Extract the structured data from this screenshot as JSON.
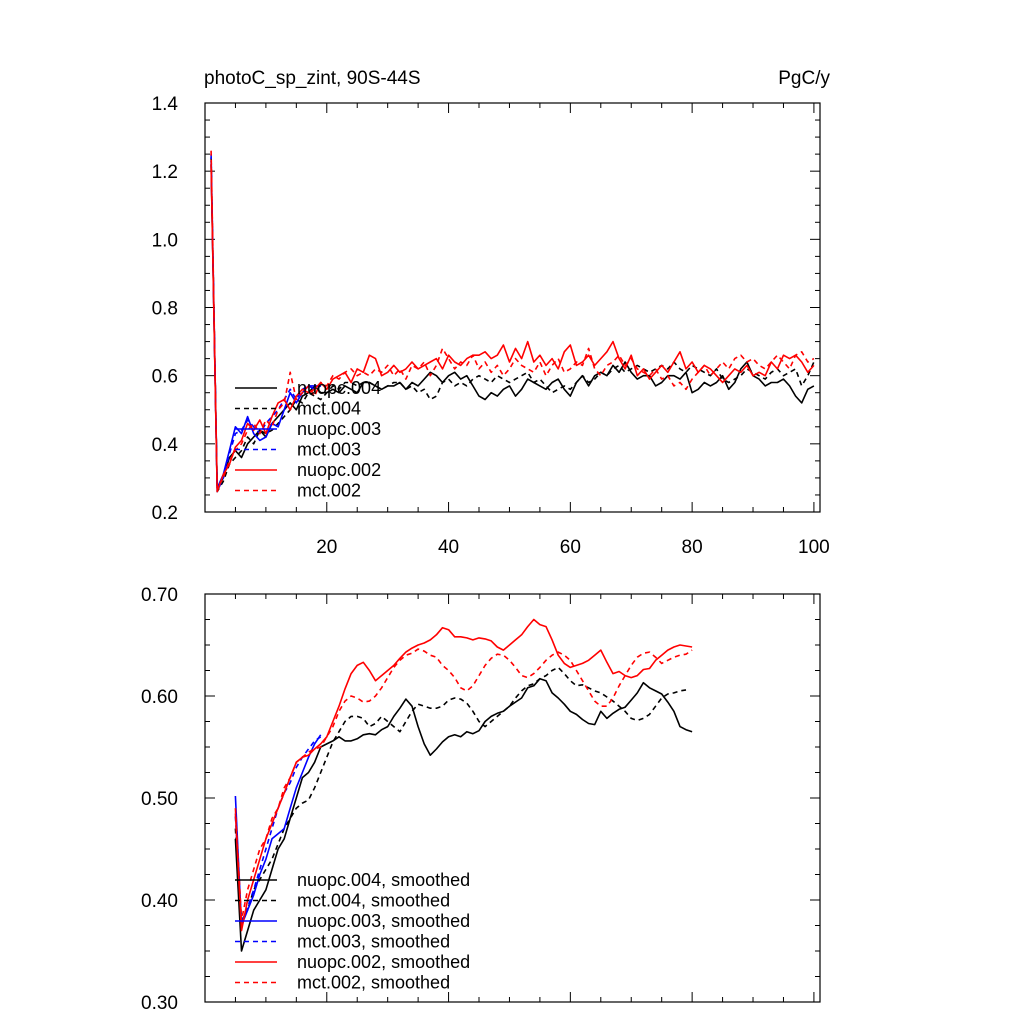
{
  "colors": {
    "black": "#000000",
    "blue": "#0000ff",
    "red": "#ff0000"
  },
  "chart_data": [
    {
      "type": "line",
      "title_left": "photoC_sp_zint, 90S-44S",
      "title_right": "PgC/y",
      "xlim": [
        0,
        101
      ],
      "ylim": [
        0.2,
        1.4
      ],
      "x_ticks": [
        20,
        40,
        60,
        80,
        100
      ],
      "x_tick_labels": [
        "20",
        "40",
        "60",
        "80",
        "100"
      ],
      "y_ticks": [
        0.2,
        0.4,
        0.6,
        0.8,
        1.0,
        1.2,
        1.4
      ],
      "y_tick_labels": [
        "0.2",
        "0.4",
        "0.6",
        "0.8",
        "1.0",
        "1.2",
        "1.4"
      ],
      "legend_position": "center-left",
      "series": [
        {
          "name": "nuopc.004",
          "color": "black",
          "dash": false,
          "x_start": 1,
          "values": [
            1.22,
            0.27,
            0.3,
            0.36,
            0.38,
            0.36,
            0.4,
            0.42,
            0.44,
            0.42,
            0.46,
            0.48,
            0.5,
            0.52,
            0.5,
            0.54,
            0.55,
            0.57,
            0.55,
            0.55,
            0.56,
            0.55,
            0.57,
            0.56,
            0.55,
            0.58,
            0.58,
            0.57,
            0.56,
            0.57,
            0.57,
            0.58,
            0.56,
            0.58,
            0.57,
            0.59,
            0.61,
            0.6,
            0.58,
            0.6,
            0.61,
            0.59,
            0.6,
            0.57,
            0.54,
            0.53,
            0.55,
            0.54,
            0.56,
            0.57,
            0.54,
            0.56,
            0.59,
            0.58,
            0.57,
            0.56,
            0.58,
            0.59,
            0.56,
            0.54,
            0.58,
            0.6,
            0.57,
            0.6,
            0.61,
            0.6,
            0.63,
            0.61,
            0.64,
            0.61,
            0.59,
            0.6,
            0.6,
            0.57,
            0.58,
            0.6,
            0.6,
            0.59,
            0.61,
            0.55,
            0.56,
            0.58,
            0.57,
            0.58,
            0.6,
            0.56,
            0.58,
            0.62,
            0.64,
            0.6,
            0.59,
            0.57,
            0.58,
            0.58,
            0.59,
            0.57,
            0.54,
            0.52,
            0.56,
            0.57
          ]
        },
        {
          "name": "mct.004",
          "color": "black",
          "dash": true,
          "x_start": 1,
          "values": [
            1.24,
            0.26,
            0.29,
            0.34,
            0.36,
            0.38,
            0.42,
            0.4,
            0.44,
            0.43,
            0.44,
            0.46,
            0.48,
            0.5,
            0.53,
            0.52,
            0.55,
            0.54,
            0.53,
            0.55,
            0.57,
            0.56,
            0.58,
            0.58,
            0.57,
            0.58,
            0.58,
            0.57,
            0.56,
            0.57,
            0.58,
            0.58,
            0.56,
            0.57,
            0.55,
            0.56,
            0.53,
            0.54,
            0.58,
            0.59,
            0.57,
            0.58,
            0.57,
            0.59,
            0.6,
            0.59,
            0.58,
            0.6,
            0.59,
            0.58,
            0.59,
            0.6,
            0.61,
            0.58,
            0.59,
            0.57,
            0.55,
            0.56,
            0.57,
            0.56,
            0.58,
            0.6,
            0.58,
            0.59,
            0.61,
            0.6,
            0.62,
            0.63,
            0.61,
            0.62,
            0.63,
            0.62,
            0.61,
            0.62,
            0.63,
            0.62,
            0.64,
            0.62,
            0.61,
            0.63,
            0.62,
            0.61,
            0.6,
            0.62,
            0.59,
            0.58,
            0.59,
            0.6,
            0.62,
            0.61,
            0.6,
            0.59,
            0.61,
            0.62,
            0.6,
            0.61,
            0.62,
            0.57,
            0.6,
            0.64
          ]
        },
        {
          "name": "nuopc.003",
          "color": "blue",
          "dash": false,
          "x_start": 1,
          "values": [
            1.23,
            0.27,
            0.31,
            0.38,
            0.45,
            0.43,
            0.48,
            0.43,
            0.41,
            0.42,
            0.46,
            0.45,
            0.5,
            0.55,
            0.52,
            0.55,
            0.57,
            0.57,
            0.57
          ]
        },
        {
          "name": "mct.003",
          "color": "blue",
          "dash": true,
          "x_start": 1,
          "values": [
            1.25,
            0.26,
            0.3,
            0.37,
            0.43,
            0.44,
            0.47,
            0.45,
            0.43,
            0.46,
            0.48,
            0.5,
            0.53,
            0.56,
            0.53,
            0.56,
            0.57,
            0.56,
            0.57
          ]
        },
        {
          "name": "nuopc.002",
          "color": "red",
          "dash": false,
          "x_start": 1,
          "values": [
            1.22,
            0.26,
            0.31,
            0.34,
            0.39,
            0.41,
            0.46,
            0.44,
            0.47,
            0.43,
            0.48,
            0.52,
            0.53,
            0.5,
            0.54,
            0.56,
            0.55,
            0.56,
            0.58,
            0.56,
            0.59,
            0.6,
            0.61,
            0.58,
            0.62,
            0.61,
            0.66,
            0.65,
            0.6,
            0.61,
            0.63,
            0.61,
            0.62,
            0.64,
            0.62,
            0.63,
            0.64,
            0.65,
            0.62,
            0.66,
            0.64,
            0.63,
            0.65,
            0.66,
            0.66,
            0.67,
            0.65,
            0.66,
            0.69,
            0.64,
            0.68,
            0.65,
            0.7,
            0.64,
            0.66,
            0.63,
            0.65,
            0.62,
            0.67,
            0.69,
            0.63,
            0.64,
            0.66,
            0.63,
            0.65,
            0.67,
            0.7,
            0.65,
            0.62,
            0.66,
            0.6,
            0.62,
            0.59,
            0.61,
            0.63,
            0.61,
            0.64,
            0.67,
            0.62,
            0.64,
            0.61,
            0.63,
            0.62,
            0.6,
            0.58,
            0.6,
            0.62,
            0.61,
            0.63,
            0.6,
            0.61,
            0.6,
            0.64,
            0.62,
            0.66,
            0.65,
            0.66,
            0.64,
            0.61,
            0.63
          ]
        },
        {
          "name": "mct.002",
          "color": "red",
          "dash": true,
          "x_start": 1,
          "values": [
            1.26,
            0.27,
            0.3,
            0.35,
            0.38,
            0.4,
            0.44,
            0.46,
            0.43,
            0.47,
            0.45,
            0.5,
            0.52,
            0.61,
            0.53,
            0.55,
            0.57,
            0.54,
            0.58,
            0.57,
            0.6,
            0.59,
            0.61,
            0.62,
            0.6,
            0.61,
            0.6,
            0.62,
            0.61,
            0.63,
            0.6,
            0.62,
            0.59,
            0.63,
            0.62,
            0.64,
            0.6,
            0.63,
            0.68,
            0.65,
            0.62,
            0.64,
            0.63,
            0.66,
            0.62,
            0.64,
            0.61,
            0.63,
            0.6,
            0.62,
            0.65,
            0.63,
            0.62,
            0.61,
            0.64,
            0.6,
            0.63,
            0.65,
            0.61,
            0.62,
            0.64,
            0.63,
            0.68,
            0.62,
            0.6,
            0.63,
            0.64,
            0.66,
            0.63,
            0.65,
            0.62,
            0.61,
            0.6,
            0.62,
            0.59,
            0.6,
            0.57,
            0.58,
            0.56,
            0.59,
            0.61,
            0.63,
            0.6,
            0.62,
            0.64,
            0.62,
            0.65,
            0.66,
            0.64,
            0.65,
            0.63,
            0.62,
            0.64,
            0.66,
            0.64,
            0.62,
            0.66,
            0.67,
            0.64,
            0.65
          ]
        }
      ],
      "legend": [
        {
          "label": "nuopc.004",
          "color": "black",
          "dash": false
        },
        {
          "label": "mct.004",
          "color": "black",
          "dash": true
        },
        {
          "label": "nuopc.003",
          "color": "blue",
          "dash": false
        },
        {
          "label": "mct.003",
          "color": "blue",
          "dash": true
        },
        {
          "label": "nuopc.002",
          "color": "red",
          "dash": false
        },
        {
          "label": "mct.002",
          "color": "red",
          "dash": true
        }
      ]
    },
    {
      "type": "line",
      "title_left": "",
      "title_right": "",
      "xlim": [
        0,
        101
      ],
      "ylim": [
        0.3,
        0.7
      ],
      "x_ticks": [
        20,
        40,
        60,
        80,
        100
      ],
      "x_tick_labels": [],
      "y_ticks": [
        0.3,
        0.4,
        0.5,
        0.6,
        0.7
      ],
      "y_tick_labels": [
        "0.30",
        "0.40",
        "0.50",
        "0.60",
        "0.70"
      ],
      "legend_position": "bottom-left",
      "series": [
        {
          "name": "nuopc.004, smoothed",
          "color": "black",
          "dash": false,
          "x_start": 5,
          "values": [
            0.46,
            0.35,
            0.37,
            0.39,
            0.4,
            0.41,
            0.43,
            0.45,
            0.46,
            0.48,
            0.5,
            0.52,
            0.525,
            0.535,
            0.55,
            0.553,
            0.556,
            0.56,
            0.556,
            0.556,
            0.558,
            0.562,
            0.563,
            0.562,
            0.567,
            0.57,
            0.58,
            0.588,
            0.597,
            0.59,
            0.57,
            0.553,
            0.542,
            0.548,
            0.555,
            0.56,
            0.562,
            0.56,
            0.565,
            0.563,
            0.566,
            0.575,
            0.58,
            0.583,
            0.585,
            0.59,
            0.594,
            0.598,
            0.608,
            0.61,
            0.617,
            0.615,
            0.603,
            0.598,
            0.592,
            0.585,
            0.582,
            0.577,
            0.573,
            0.572,
            0.585,
            0.578,
            0.583,
            0.587,
            0.589,
            0.596,
            0.603,
            0.613,
            0.608,
            0.605,
            0.602,
            0.594,
            0.585,
            0.57,
            0.567,
            0.565
          ]
        },
        {
          "name": "mct.004, smoothed",
          "color": "black",
          "dash": true,
          "x_start": 5,
          "values": [
            0.47,
            0.38,
            0.39,
            0.41,
            0.42,
            0.43,
            0.44,
            0.455,
            0.47,
            0.48,
            0.49,
            0.495,
            0.498,
            0.51,
            0.525,
            0.54,
            0.555,
            0.565,
            0.575,
            0.58,
            0.58,
            0.578,
            0.57,
            0.573,
            0.58,
            0.575,
            0.57,
            0.565,
            0.575,
            0.585,
            0.592,
            0.59,
            0.588,
            0.588,
            0.59,
            0.596,
            0.598,
            0.597,
            0.593,
            0.585,
            0.575,
            0.57,
            0.575,
            0.58,
            0.585,
            0.59,
            0.598,
            0.605,
            0.61,
            0.612,
            0.617,
            0.62,
            0.625,
            0.628,
            0.622,
            0.615,
            0.61,
            0.611,
            0.608,
            0.605,
            0.603,
            0.599,
            0.595,
            0.59,
            0.585,
            0.578,
            0.576,
            0.578,
            0.582,
            0.59,
            0.598,
            0.602,
            0.603,
            0.605,
            0.606
          ]
        },
        {
          "name": "nuopc.003, smoothed",
          "color": "blue",
          "dash": false,
          "x_start": 5,
          "values": [
            0.502,
            0.375,
            0.39,
            0.405,
            0.425,
            0.44,
            0.46,
            0.465,
            0.47,
            0.49,
            0.51,
            0.525,
            0.54,
            0.553,
            0.562
          ]
        },
        {
          "name": "mct.003, smoothed",
          "color": "blue",
          "dash": true,
          "x_start": 5,
          "values": [
            0.482,
            0.378,
            0.393,
            0.41,
            0.43,
            0.45,
            0.47,
            0.49,
            0.505,
            0.515,
            0.53,
            0.54,
            0.548,
            0.556,
            0.56
          ]
        },
        {
          "name": "nuopc.002, smoothed",
          "color": "red",
          "dash": false,
          "x_start": 5,
          "values": [
            0.485,
            0.37,
            0.4,
            0.42,
            0.44,
            0.46,
            0.475,
            0.49,
            0.505,
            0.52,
            0.535,
            0.54,
            0.542,
            0.548,
            0.553,
            0.56,
            0.575,
            0.59,
            0.607,
            0.622,
            0.63,
            0.633,
            0.625,
            0.615,
            0.62,
            0.625,
            0.63,
            0.637,
            0.643,
            0.647,
            0.65,
            0.652,
            0.655,
            0.66,
            0.667,
            0.665,
            0.658,
            0.658,
            0.657,
            0.655,
            0.657,
            0.656,
            0.654,
            0.648,
            0.645,
            0.65,
            0.655,
            0.66,
            0.668,
            0.675,
            0.67,
            0.668,
            0.655,
            0.64,
            0.632,
            0.628,
            0.63,
            0.632,
            0.635,
            0.64,
            0.645,
            0.633,
            0.622,
            0.624,
            0.62,
            0.618,
            0.62,
            0.626,
            0.627,
            0.635,
            0.64,
            0.645,
            0.648,
            0.65,
            0.649,
            0.648
          ]
        },
        {
          "name": "mct.002, smoothed",
          "color": "red",
          "dash": true,
          "x_start": 5,
          "values": [
            0.49,
            0.38,
            0.41,
            0.43,
            0.45,
            0.46,
            0.48,
            0.49,
            0.51,
            0.52,
            0.535,
            0.54,
            0.545,
            0.548,
            0.55,
            0.56,
            0.57,
            0.585,
            0.595,
            0.6,
            0.598,
            0.594,
            0.595,
            0.6,
            0.608,
            0.618,
            0.628,
            0.635,
            0.64,
            0.642,
            0.646,
            0.644,
            0.64,
            0.638,
            0.63,
            0.625,
            0.618,
            0.608,
            0.605,
            0.61,
            0.62,
            0.63,
            0.637,
            0.641,
            0.64,
            0.635,
            0.628,
            0.62,
            0.618,
            0.622,
            0.628,
            0.635,
            0.64,
            0.643,
            0.64,
            0.635,
            0.625,
            0.615,
            0.605,
            0.595,
            0.59,
            0.59,
            0.598,
            0.61,
            0.62,
            0.63,
            0.638,
            0.642,
            0.643,
            0.638,
            0.632,
            0.635,
            0.638,
            0.64,
            0.641,
            0.645
          ]
        }
      ],
      "legend": [
        {
          "label": "nuopc.004, smoothed",
          "color": "black",
          "dash": false
        },
        {
          "label": "mct.004, smoothed",
          "color": "black",
          "dash": true
        },
        {
          "label": "nuopc.003, smoothed",
          "color": "blue",
          "dash": false
        },
        {
          "label": "mct.003, smoothed",
          "color": "blue",
          "dash": true
        },
        {
          "label": "nuopc.002, smoothed",
          "color": "red",
          "dash": false
        },
        {
          "label": "mct.002, smoothed",
          "color": "red",
          "dash": true
        }
      ]
    }
  ]
}
